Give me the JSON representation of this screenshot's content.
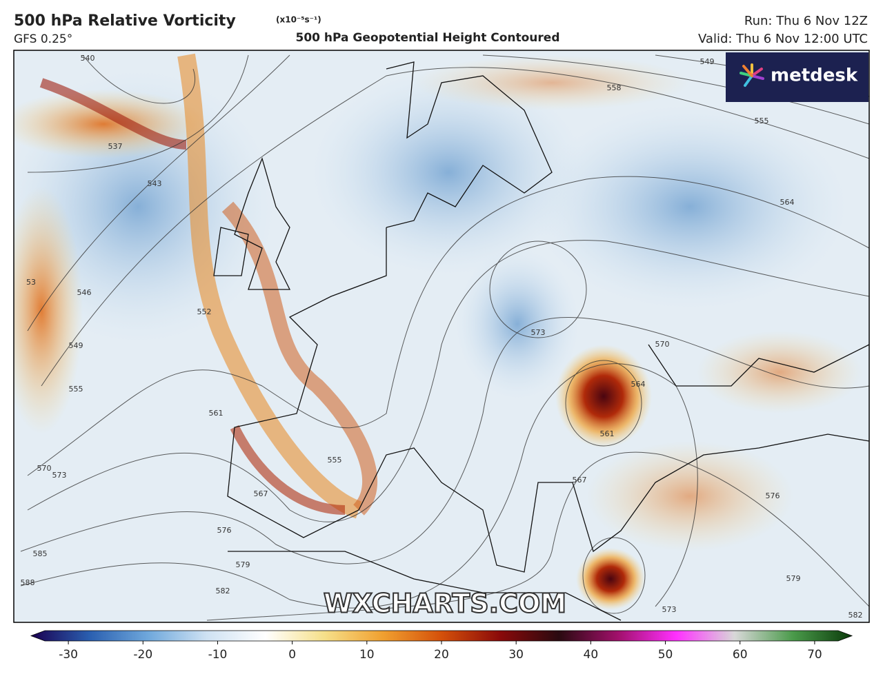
{
  "header": {
    "title": "500 hPa Relative Vorticity",
    "units": "(x10⁻⁵s⁻¹)",
    "model": "GFS 0.25°",
    "subtitle": "500 hPa Geopotential Height Contoured",
    "run": "Run: Thu 6 Nov 12Z",
    "valid": "Valid: Thu 6 Nov 12:00 UTC"
  },
  "logo": "metdesk",
  "watermark": "WXCHARTS.COM",
  "contour_labels": [
    "540",
    "537",
    "543",
    "546",
    "549",
    "555",
    "552",
    "561",
    "570",
    "573",
    "567",
    "576",
    "579",
    "582",
    "585",
    "588",
    "555",
    "558",
    "555",
    "549",
    "564",
    "573",
    "570",
    "564",
    "561",
    "567",
    "576",
    "579",
    "582",
    "573",
    "53"
  ],
  "colorbar": {
    "lim": [
      -35,
      75
    ],
    "ticks": [
      -30,
      -20,
      -10,
      0,
      10,
      20,
      30,
      40,
      50,
      60,
      70
    ],
    "colors": [
      "#1a0050",
      "#2a5fb0",
      "#6fa8dc",
      "#cfe2f3",
      "#ffffff",
      "#f6e08a",
      "#f0a030",
      "#d4500a",
      "#8a0a0a",
      "#2a0a10",
      "#a0106a",
      "#ff30ff",
      "#d8d8d8",
      "#4a9a4a",
      "#0a3a0a"
    ]
  }
}
